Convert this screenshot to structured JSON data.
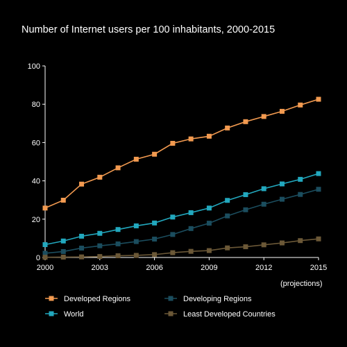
{
  "chart_data": {
    "type": "line",
    "title": "Number of Internet users per 100 inhabitants, 2000-2015",
    "xlabel": "",
    "ylabel": "",
    "note": "(projections)",
    "xlim": [
      2000,
      2015
    ],
    "ylim": [
      0,
      100
    ],
    "x_ticks": [
      2000,
      2003,
      2006,
      2009,
      2012,
      2015
    ],
    "y_ticks": [
      0,
      20,
      40,
      60,
      80,
      100
    ],
    "grid": false,
    "legend_position": "bottom",
    "x": [
      2000,
      2001,
      2002,
      2003,
      2004,
      2005,
      2006,
      2007,
      2008,
      2009,
      2010,
      2011,
      2012,
      2013,
      2014,
      2015
    ],
    "series": [
      {
        "name": "Developed Regions",
        "color": "#F29A50",
        "values": [
          25.8,
          29.9,
          38.3,
          41.9,
          46.8,
          51.3,
          53.9,
          59.6,
          61.9,
          63.3,
          67.6,
          70.9,
          73.6,
          76.3,
          79.6,
          82.6
        ]
      },
      {
        "name": "World",
        "color": "#22A8BE",
        "values": [
          6.7,
          8.6,
          11.1,
          12.6,
          14.6,
          16.5,
          18.0,
          21.1,
          23.4,
          25.8,
          29.8,
          32.8,
          35.9,
          38.4,
          40.8,
          43.8
        ]
      },
      {
        "name": "Developing Regions",
        "color": "#1B4D5E",
        "values": [
          2.2,
          3.1,
          4.9,
          6.1,
          7.1,
          8.3,
          9.6,
          12.0,
          15.1,
          17.9,
          21.7,
          24.9,
          27.8,
          30.4,
          32.9,
          35.6
        ]
      },
      {
        "name": "Least Developed Countries",
        "color": "#6B5837",
        "values": [
          0.1,
          0.2,
          0.3,
          0.5,
          0.9,
          1.1,
          1.5,
          2.5,
          3.2,
          3.6,
          5.0,
          5.6,
          6.6,
          7.6,
          8.8,
          9.7
        ]
      }
    ]
  }
}
